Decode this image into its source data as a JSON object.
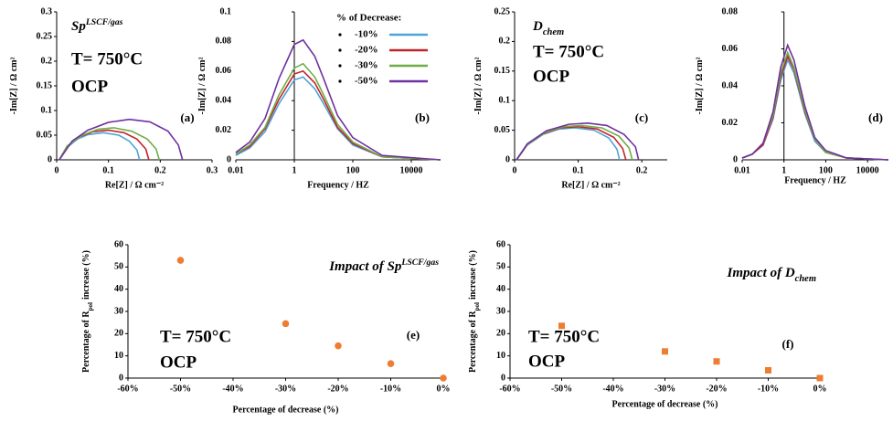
{
  "chart_data": [
    {
      "type": "line",
      "label": "Sp",
      "label_sup": "LSCF/gas",
      "temperature": "T= 750°C",
      "condition": "OCP",
      "panel": "(a)",
      "xlabel": "Re[Z] / Ω cm⁻²",
      "ylabel": "-Im[Z] / Ω cm²",
      "xlim": [
        0,
        0.3
      ],
      "xticks": [
        0,
        0.1,
        0.2,
        0.3
      ],
      "ylim": [
        0,
        0.3
      ],
      "yticks": [
        0,
        0.05,
        0.1,
        0.15,
        0.2,
        0.25,
        0.3
      ],
      "series": [
        {
          "name": "-10%",
          "color": "#4ea3d9",
          "x": [
            0.005,
            0.02,
            0.04,
            0.06,
            0.09,
            0.12,
            0.14,
            0.155,
            0.16
          ],
          "values": [
            0,
            0.025,
            0.042,
            0.051,
            0.055,
            0.05,
            0.038,
            0.02,
            0
          ]
        },
        {
          "name": "-20%",
          "color": "#c0242b",
          "x": [
            0.005,
            0.02,
            0.04,
            0.07,
            0.1,
            0.13,
            0.155,
            0.172,
            0.178
          ],
          "values": [
            0,
            0.027,
            0.045,
            0.057,
            0.06,
            0.055,
            0.042,
            0.022,
            0
          ]
        },
        {
          "name": "-30%",
          "color": "#70ad47",
          "x": [
            0.005,
            0.02,
            0.05,
            0.08,
            0.11,
            0.145,
            0.175,
            0.192,
            0.198
          ],
          "values": [
            0,
            0.028,
            0.05,
            0.062,
            0.065,
            0.058,
            0.042,
            0.022,
            0
          ]
        },
        {
          "name": "-50%",
          "color": "#7030a0",
          "x": [
            0.005,
            0.03,
            0.06,
            0.1,
            0.14,
            0.18,
            0.215,
            0.235,
            0.243
          ],
          "values": [
            0,
            0.038,
            0.06,
            0.076,
            0.082,
            0.077,
            0.058,
            0.03,
            0
          ]
        }
      ]
    },
    {
      "type": "line",
      "xscale": "log",
      "y_axis_at": 1,
      "panel": "(b)",
      "legend_title": "% of Decrease:",
      "xlabel": "Frequency / HZ",
      "ylabel": "-Im[Z] / Ω cm²",
      "xlim": [
        0.01,
        100000
      ],
      "xticks": [
        0.01,
        1,
        100,
        10000
      ],
      "ylim": [
        0,
        0.1
      ],
      "yticks": [
        0,
        0.02,
        0.04,
        0.06,
        0.08,
        0.1
      ],
      "x": [
        0.01,
        0.03,
        0.1,
        0.3,
        1,
        2,
        5,
        10,
        30,
        100,
        1000,
        100000
      ],
      "series": [
        {
          "name": "-10%",
          "color": "#4ea3d9",
          "values": [
            0.003,
            0.008,
            0.019,
            0.038,
            0.054,
            0.056,
            0.048,
            0.038,
            0.021,
            0.01,
            0.002,
            0
          ]
        },
        {
          "name": "-20%",
          "color": "#c0242b",
          "values": [
            0.004,
            0.009,
            0.021,
            0.041,
            0.058,
            0.06,
            0.052,
            0.041,
            0.022,
            0.011,
            0.002,
            0
          ]
        },
        {
          "name": "-30%",
          "color": "#70ad47",
          "values": [
            0.004,
            0.01,
            0.022,
            0.044,
            0.062,
            0.065,
            0.056,
            0.044,
            0.024,
            0.012,
            0.002,
            0
          ]
        },
        {
          "name": "-50%",
          "color": "#7030a0",
          "values": [
            0.005,
            0.012,
            0.028,
            0.055,
            0.078,
            0.081,
            0.07,
            0.055,
            0.03,
            0.015,
            0.003,
            0
          ]
        }
      ]
    },
    {
      "type": "line",
      "label": "D",
      "label_sub": "chem",
      "temperature": "T= 750°C",
      "condition": "OCP",
      "panel": "(c)",
      "xlabel": "Re[Z] / Ω cm⁻²",
      "ylabel": "-Im[Z] / Ω cm²",
      "xlim": [
        0,
        0.24
      ],
      "xticks": [
        0,
        0.1,
        0.2
      ],
      "ylim": [
        0,
        0.25
      ],
      "yticks": [
        0,
        0.05,
        0.1,
        0.15,
        0.2,
        0.25
      ],
      "series": [
        {
          "name": "-10%",
          "color": "#4ea3d9",
          "x": [
            0.003,
            0.02,
            0.045,
            0.07,
            0.095,
            0.125,
            0.148,
            0.161,
            0.165
          ],
          "values": [
            0,
            0.025,
            0.043,
            0.052,
            0.054,
            0.05,
            0.037,
            0.018,
            0
          ]
        },
        {
          "name": "-20%",
          "color": "#c0242b",
          "x": [
            0.003,
            0.02,
            0.045,
            0.073,
            0.1,
            0.13,
            0.156,
            0.17,
            0.175
          ],
          "values": [
            0,
            0.026,
            0.044,
            0.054,
            0.056,
            0.052,
            0.038,
            0.019,
            0
          ]
        },
        {
          "name": "-30%",
          "color": "#70ad47",
          "x": [
            0.003,
            0.02,
            0.048,
            0.077,
            0.105,
            0.137,
            0.164,
            0.18,
            0.185
          ],
          "values": [
            0,
            0.026,
            0.046,
            0.056,
            0.058,
            0.054,
            0.04,
            0.02,
            0
          ]
        },
        {
          "name": "-50%",
          "color": "#7030a0",
          "x": [
            0.003,
            0.02,
            0.05,
            0.085,
            0.115,
            0.145,
            0.172,
            0.19,
            0.195
          ],
          "values": [
            0,
            0.027,
            0.049,
            0.06,
            0.062,
            0.058,
            0.043,
            0.022,
            0
          ]
        }
      ]
    },
    {
      "type": "line",
      "xscale": "log",
      "y_axis_at": 1,
      "panel": "(d)",
      "xlabel": "Frequency / HZ",
      "ylabel": "-Im[Z] / Ω cm²",
      "xlim": [
        0.01,
        100000
      ],
      "xticks": [
        0.01,
        1,
        100,
        10000
      ],
      "ylim": [
        0,
        0.08
      ],
      "yticks": [
        0,
        0.02,
        0.04,
        0.06,
        0.08
      ],
      "x": [
        0.01,
        0.03,
        0.1,
        0.3,
        0.7,
        1.5,
        3,
        10,
        30,
        100,
        1000,
        100000
      ],
      "series": [
        {
          "name": "-10%",
          "color": "#4ea3d9",
          "values": [
            0.001,
            0.003,
            0.008,
            0.022,
            0.043,
            0.054,
            0.047,
            0.025,
            0.01,
            0.004,
            0.001,
            0
          ]
        },
        {
          "name": "-20%",
          "color": "#c0242b",
          "values": [
            0.001,
            0.003,
            0.008,
            0.023,
            0.045,
            0.056,
            0.049,
            0.026,
            0.011,
            0.004,
            0.001,
            0
          ]
        },
        {
          "name": "-30%",
          "color": "#70ad47",
          "values": [
            0.001,
            0.003,
            0.009,
            0.024,
            0.047,
            0.058,
            0.05,
            0.027,
            0.011,
            0.004,
            0.001,
            0
          ]
        },
        {
          "name": "-50%",
          "color": "#7030a0",
          "values": [
            0.001,
            0.003,
            0.009,
            0.026,
            0.05,
            0.062,
            0.054,
            0.029,
            0.012,
            0.005,
            0.001,
            0
          ]
        }
      ]
    },
    {
      "type": "scatter",
      "marker": "circle",
      "color": "#ed7d31",
      "title": "Impact of Sp",
      "title_sup": "LSCF/gas",
      "temperature": "T= 750°C",
      "condition": "OCP",
      "panel": "(e)",
      "xlabel": "Percentage of decrease (%)",
      "ylabel": "Percentage of R",
      "ylabel_sub": "pol",
      "ylabel_tail": "increase (%)",
      "xlim": [
        -60,
        0
      ],
      "xticks": [
        {
          "value": -60,
          "label": "-60%"
        },
        {
          "value": -50,
          "label": "-50%"
        },
        {
          "value": -40,
          "label": "-40%"
        },
        {
          "value": -30,
          "label": "-30%"
        },
        {
          "value": -20,
          "label": "-20%"
        },
        {
          "value": -10,
          "label": "-10%"
        },
        {
          "value": 0,
          "label": "0%"
        }
      ],
      "ylim": [
        0,
        60
      ],
      "yticks": [
        0,
        10,
        20,
        30,
        40,
        50,
        60
      ],
      "x": [
        -50,
        -30,
        -20,
        -10,
        0
      ],
      "values": [
        53,
        24.5,
        14.5,
        6.5,
        0
      ]
    },
    {
      "type": "scatter",
      "marker": "square",
      "color": "#ed7d31",
      "title": "Impact of D",
      "title_sub": "chem",
      "temperature": "T= 750°C",
      "condition": "OCP",
      "panel": "(f)",
      "xlabel": "Percentage of decrease (%)",
      "ylabel": "Percentage of R",
      "ylabel_sub": "pol",
      "ylabel_tail": "increase (%)",
      "xlim": [
        -60,
        0
      ],
      "xticks": [
        {
          "value": -60,
          "label": "-60%"
        },
        {
          "value": -50,
          "label": "-50%"
        },
        {
          "value": -40,
          "label": "-40%"
        },
        {
          "value": -30,
          "label": "-30%"
        },
        {
          "value": -20,
          "label": "-20%"
        },
        {
          "value": -10,
          "label": "-10%"
        },
        {
          "value": 0,
          "label": "0%"
        }
      ],
      "ylim": [
        0,
        60
      ],
      "yticks": [
        0,
        10,
        20,
        30,
        40,
        50,
        60
      ],
      "x": [
        -50,
        -30,
        -20,
        -10,
        0
      ],
      "values": [
        23.5,
        12,
        7.5,
        3.5,
        0
      ]
    }
  ]
}
